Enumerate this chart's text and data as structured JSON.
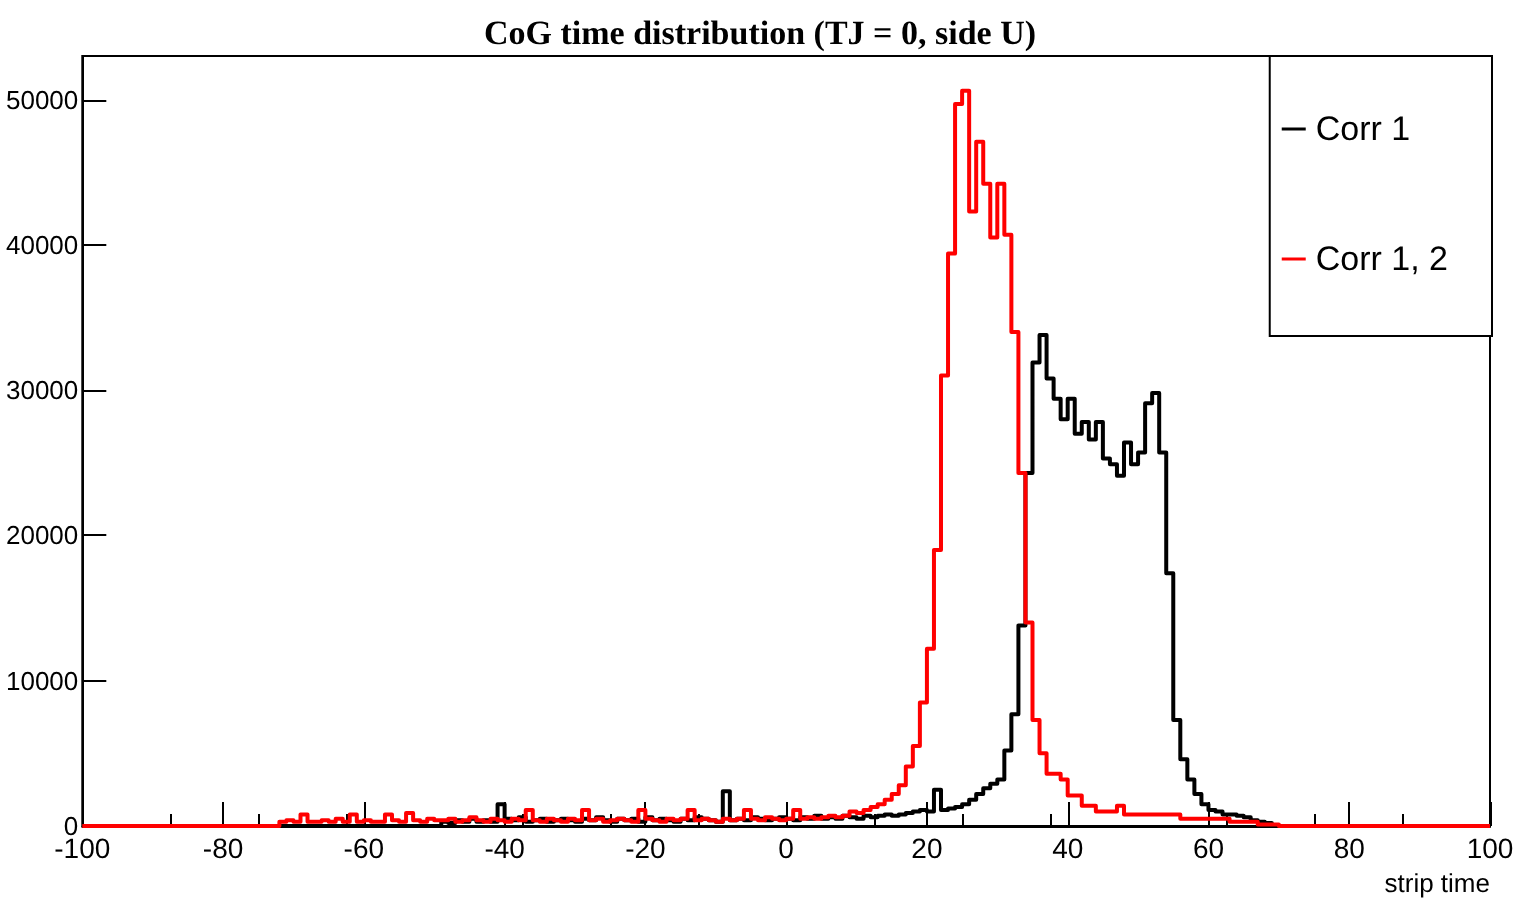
{
  "chart_data": {
    "type": "histogram",
    "title": "CoG time distribution (TJ = 0, side U)",
    "xlabel": "strip time",
    "bins": [
      -100,
      -99,
      -98,
      -97,
      -96,
      -95,
      -94,
      -93,
      -92,
      -91,
      -90,
      -89,
      -88,
      -87,
      -86,
      -85,
      -84,
      -83,
      -82,
      -81,
      -80,
      -79,
      -78,
      -77,
      -76,
      -75,
      -74,
      -73,
      -72,
      -71,
      -70,
      -69,
      -68,
      -67,
      -66,
      -65,
      -64,
      -63,
      -62,
      -61,
      -60,
      -59,
      -58,
      -57,
      -56,
      -55,
      -54,
      -53,
      -52,
      -51,
      -50,
      -49,
      -48,
      -47,
      -46,
      -45,
      -44,
      -43,
      -42,
      -41,
      -40,
      -39,
      -38,
      -37,
      -36,
      -35,
      -34,
      -33,
      -32,
      -31,
      -30,
      -29,
      -28,
      -27,
      -26,
      -25,
      -24,
      -23,
      -22,
      -21,
      -20,
      -19,
      -18,
      -17,
      -16,
      -15,
      -14,
      -13,
      -12,
      -11,
      -10,
      -9,
      -8,
      -7,
      -6,
      -5,
      -4,
      -3,
      -2,
      -1,
      0,
      1,
      2,
      3,
      4,
      5,
      6,
      7,
      8,
      9,
      10,
      11,
      12,
      13,
      14,
      15,
      16,
      17,
      18,
      19,
      20,
      21,
      22,
      23,
      24,
      25,
      26,
      27,
      28,
      29,
      30,
      31,
      32,
      33,
      34,
      35,
      36,
      37,
      38,
      39,
      40,
      41,
      42,
      43,
      44,
      45,
      46,
      47,
      48,
      49,
      50,
      51,
      52,
      53,
      54,
      55,
      56,
      57,
      58,
      59,
      60,
      61,
      62,
      63,
      64,
      65,
      66,
      67,
      68,
      69,
      70,
      71,
      72,
      73,
      74,
      75,
      76,
      77,
      78,
      79,
      80,
      81,
      82,
      83,
      84,
      85,
      86,
      87,
      88,
      89,
      90,
      91,
      92,
      93,
      94,
      95,
      96,
      97,
      98,
      99,
      100
    ],
    "series": [
      {
        "name": "Corr 1",
        "color": "#000000",
        "values": [
          0,
          0,
          0,
          0,
          0,
          0,
          0,
          0,
          0,
          0,
          0,
          0,
          0,
          0,
          0,
          0,
          0,
          0,
          0,
          0,
          0,
          0,
          0,
          0,
          0,
          0,
          0,
          0,
          0,
          0,
          0,
          0,
          0,
          0,
          0,
          0,
          0,
          0,
          0,
          0,
          0,
          0,
          0,
          0,
          0,
          0,
          0,
          0,
          0,
          0,
          0,
          300,
          200,
          400,
          300,
          500,
          300,
          400,
          300,
          1500,
          500,
          400,
          600,
          300,
          400,
          500,
          300,
          400,
          500,
          400,
          300,
          500,
          400,
          600,
          400,
          300,
          500,
          400,
          500,
          300,
          600,
          400,
          500,
          400,
          300,
          500,
          400,
          600,
          500,
          400,
          300,
          2400,
          400,
          500,
          400,
          600,
          500,
          400,
          500,
          600,
          500,
          400,
          600,
          500,
          700,
          500,
          600,
          500,
          700,
          600,
          500,
          700,
          600,
          700,
          800,
          700,
          800,
          900,
          1000,
          1100,
          1000,
          2500,
          1100,
          1200,
          1300,
          1500,
          1800,
          2200,
          2600,
          2900,
          3200,
          5200,
          7700,
          13800,
          24300,
          31900,
          33800,
          30800,
          29400,
          28000,
          29400,
          27000,
          27800,
          26600,
          27800,
          25300,
          24900,
          24100,
          26400,
          24900,
          25700,
          29100,
          29800,
          25700,
          17400,
          7300,
          4600,
          3200,
          2200,
          1500,
          1100,
          1000,
          800,
          800,
          700,
          600,
          400,
          300,
          200,
          0,
          0,
          0,
          0,
          0,
          0,
          0,
          0,
          0,
          0,
          0,
          0,
          0,
          0,
          0,
          0,
          0,
          0,
          0,
          0,
          0,
          0,
          0,
          0,
          0,
          0,
          0,
          0,
          0,
          0,
          0
        ]
      },
      {
        "name": "Corr 1, 2",
        "color": "#ff0000",
        "values": [
          0,
          0,
          0,
          0,
          0,
          0,
          0,
          0,
          0,
          0,
          0,
          0,
          0,
          0,
          0,
          0,
          0,
          0,
          0,
          0,
          0,
          0,
          0,
          0,
          0,
          0,
          0,
          0,
          300,
          400,
          300,
          800,
          300,
          300,
          400,
          300,
          500,
          300,
          800,
          300,
          400,
          300,
          300,
          800,
          400,
          300,
          900,
          400,
          300,
          500,
          400,
          400,
          500,
          300,
          400,
          600,
          400,
          300,
          500,
          400,
          300,
          500,
          400,
          1100,
          400,
          300,
          500,
          400,
          300,
          500,
          400,
          1100,
          400,
          500,
          300,
          400,
          500,
          400,
          300,
          1100,
          500,
          400,
          300,
          500,
          400,
          500,
          1100,
          400,
          500,
          400,
          300,
          500,
          400,
          500,
          1100,
          500,
          400,
          600,
          500,
          400,
          500,
          1100,
          500,
          600,
          500,
          600,
          700,
          600,
          700,
          1000,
          900,
          1100,
          1300,
          1500,
          1800,
          2200,
          2800,
          4100,
          5500,
          8500,
          12200,
          19000,
          31000,
          39400,
          49700,
          50600,
          42300,
          47100,
          44200,
          40500,
          44200,
          40700,
          34000,
          24300,
          14000,
          7300,
          5000,
          3600,
          3600,
          3200,
          2100,
          2100,
          1400,
          1400,
          1000,
          1000,
          1000,
          1400,
          800,
          800,
          800,
          800,
          800,
          800,
          800,
          800,
          500,
          500,
          500,
          500,
          500,
          500,
          500,
          300,
          300,
          300,
          300,
          100,
          100,
          100,
          0,
          0,
          0,
          0,
          0,
          0,
          0,
          0,
          0,
          0,
          0,
          0,
          0,
          0,
          0,
          0,
          0,
          0,
          0,
          0,
          0,
          0,
          0,
          0,
          0,
          0,
          0,
          0,
          0,
          0
        ]
      }
    ],
    "xlim": [
      -100,
      100
    ],
    "xticks": [
      -100,
      -80,
      -60,
      -40,
      -20,
      0,
      20,
      40,
      60,
      80,
      100
    ],
    "ylim": [
      0,
      53000
    ],
    "yticks": [
      0,
      10000,
      20000,
      30000,
      40000,
      50000
    ],
    "legend": "top right",
    "marker": "none",
    "line_style": "solid"
  }
}
